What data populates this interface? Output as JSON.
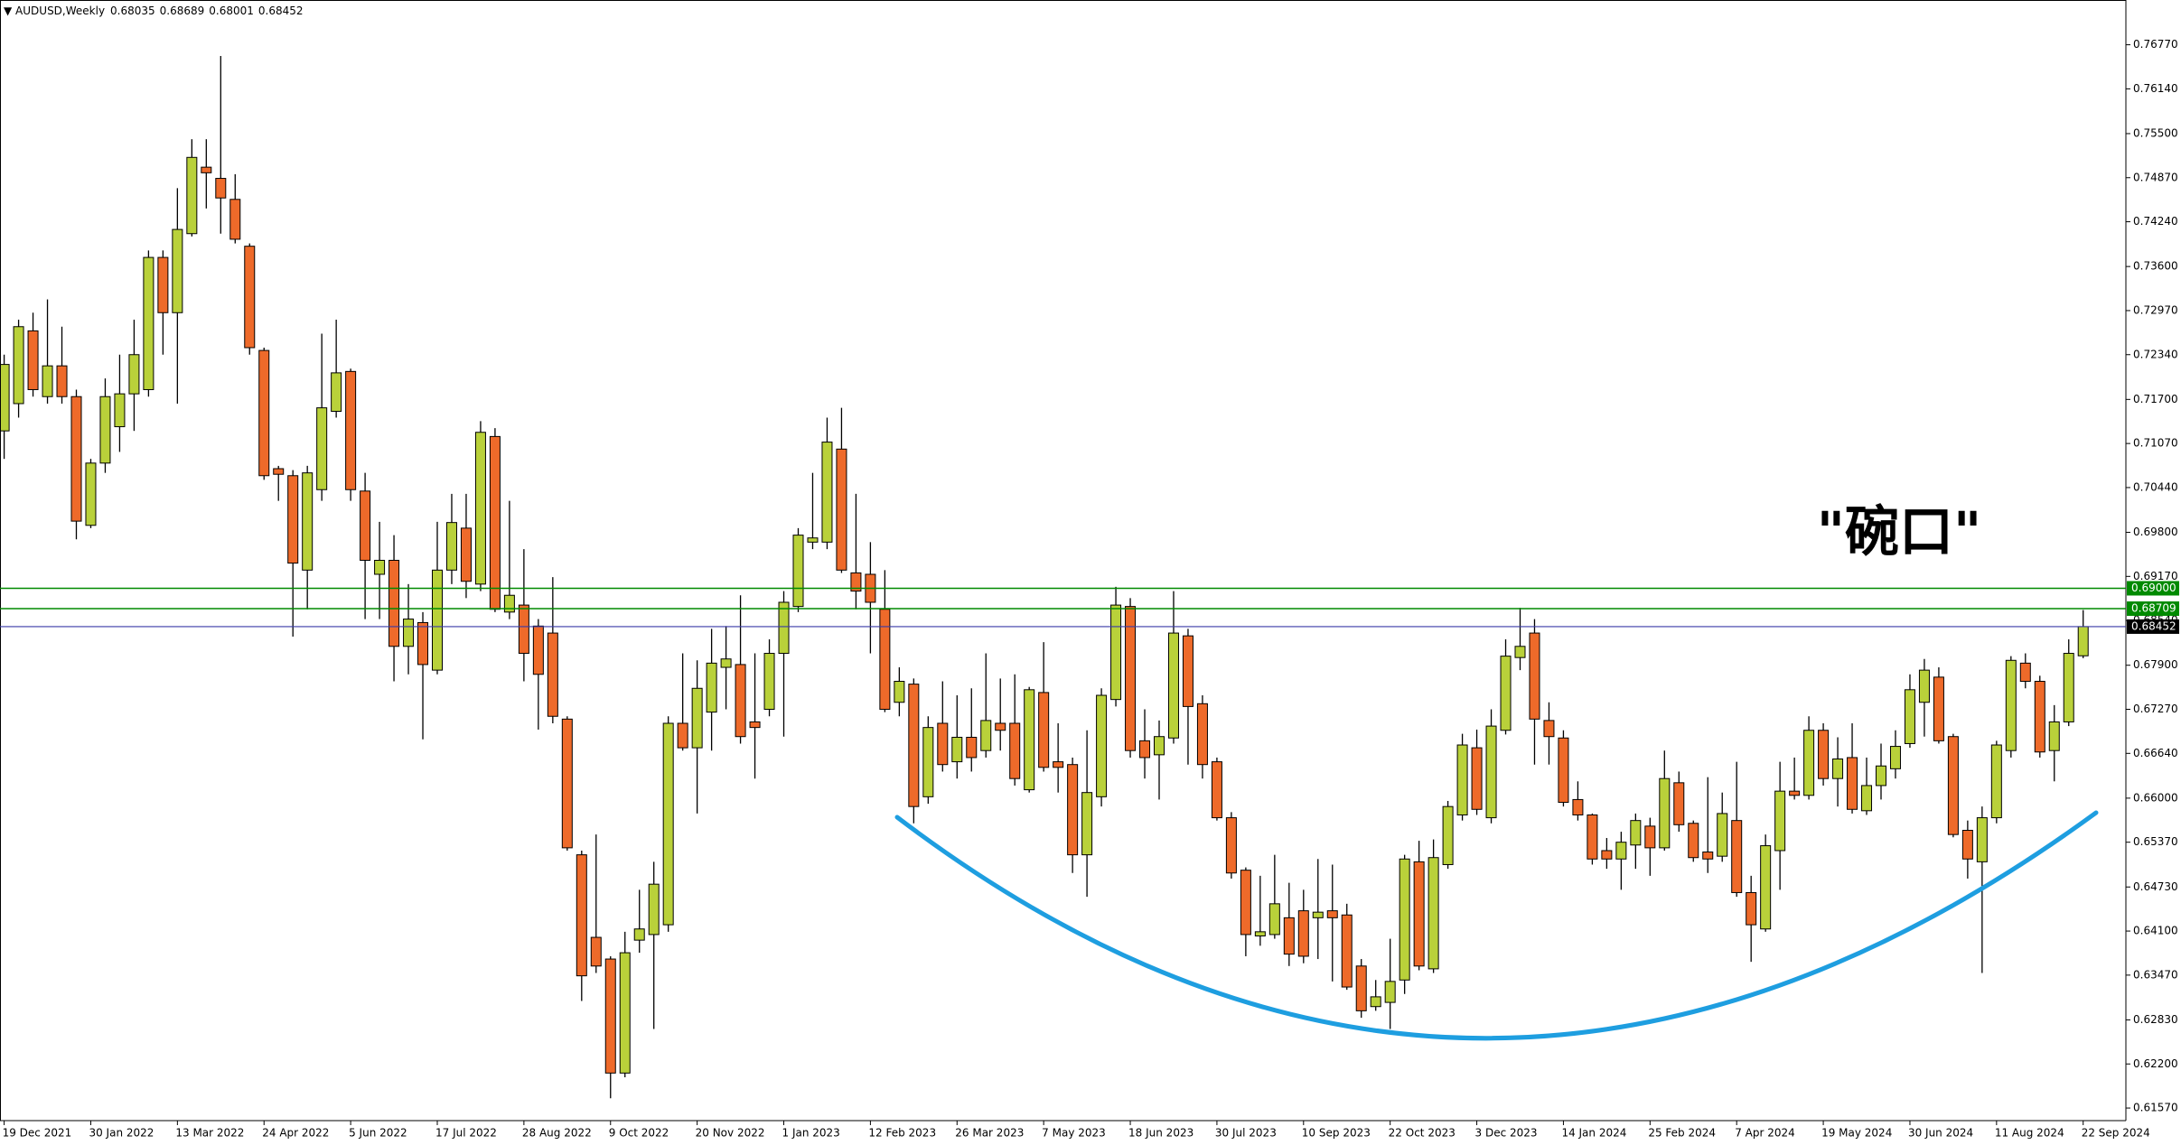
{
  "chart_data": {
    "type": "candlestick",
    "title": "AUDUSD,Weekly",
    "annotation": "\"碗口\"",
    "up_color": "#b9d13a",
    "down_color": "#ee6a2a",
    "categories": [
      "19 Dec 2021",
      null,
      null,
      null,
      null,
      null,
      "30 Jan 2022",
      null,
      null,
      null,
      null,
      null,
      "13 Mar 2022",
      null,
      null,
      null,
      null,
      null,
      "24 Apr 2022",
      null,
      null,
      null,
      null,
      null,
      "5 Jun 2022",
      null,
      null,
      null,
      null,
      null,
      "17 Jul 2022",
      null,
      null,
      null,
      null,
      null,
      "28 Aug 2022",
      null,
      null,
      null,
      null,
      null,
      "9 Oct 2022",
      null,
      null,
      null,
      null,
      null,
      "20 Nov 2022",
      null,
      null,
      null,
      null,
      null,
      "1 Jan 2023",
      null,
      null,
      null,
      null,
      null,
      "12 Feb 2023",
      null,
      null,
      null,
      null,
      null,
      "26 Mar 2023",
      null,
      null,
      null,
      null,
      null,
      "7 May 2023",
      null,
      null,
      null,
      null,
      null,
      "18 Jun 2023",
      null,
      null,
      null,
      null,
      null,
      "30 Jul 2023",
      null,
      null,
      null,
      null,
      null,
      "10 Sep 2023",
      null,
      null,
      null,
      null,
      null,
      "22 Oct 2023",
      null,
      null,
      null,
      null,
      null,
      "3 Dec 2023",
      null,
      null,
      null,
      null,
      null,
      "14 Jan 2024",
      null,
      null,
      null,
      null,
      null,
      "25 Feb 2024",
      null,
      null,
      null,
      null,
      null,
      "7 Apr 2024",
      null,
      null,
      null,
      null,
      null,
      "19 May 2024",
      null,
      null,
      null,
      null,
      null,
      "30 Jun 2024",
      null,
      null,
      null,
      null,
      null,
      "11 Aug 2024",
      null,
      null,
      null,
      null,
      null,
      "22 Sep 2024"
    ],
    "open": [
      0.7125,
      0.7164,
      0.7268,
      0.7174,
      0.7218,
      0.7174,
      0.699,
      0.7079,
      0.7131,
      0.7178,
      0.7184,
      0.7373,
      0.7294,
      0.7407,
      0.7502,
      0.7486,
      0.7456,
      0.7389,
      0.724,
      0.7071,
      0.7061,
      0.6926,
      0.7041,
      0.7153,
      0.721,
      0.7039,
      0.692,
      0.694,
      0.6817,
      0.6851,
      0.6783,
      0.6926,
      0.6986,
      0.6906,
      0.7117,
      0.6866,
      0.6876,
      0.6846,
      0.6836,
      0.6713,
      0.6519,
      0.6401,
      0.637,
      0.6207,
      0.6397,
      0.6405,
      0.6419,
      0.6707,
      0.6672,
      0.6723,
      0.6787,
      0.6791,
      0.6709,
      0.6727,
      0.6807,
      0.6874,
      0.6966,
      0.6966,
      0.7099,
      0.6922,
      0.692,
      0.687,
      0.6737,
      0.6763,
      0.6602,
      0.6707,
      0.6652,
      0.6687,
      0.6668,
      0.6707,
      0.6707,
      0.6612,
      0.6751,
      0.6652,
      0.6648,
      0.6519,
      0.6602,
      0.6741,
      0.6874,
      0.6682,
      0.6662,
      0.6686,
      0.6832,
      0.6735,
      0.6652,
      0.6572,
      0.6497,
      0.6403,
      0.6405,
      0.6429,
      0.6439,
      0.6429,
      0.6439,
      0.6433,
      0.636,
      0.6302,
      0.6308,
      0.634,
      0.6509,
      0.6356,
      0.6505,
      0.6576,
      0.6672,
      0.6572,
      0.6697,
      0.6801,
      0.6836,
      0.6711,
      0.6686,
      0.6598,
      0.6576,
      0.6525,
      0.6513,
      0.6533,
      0.656,
      0.6529,
      0.6622,
      0.6564,
      0.6523,
      0.6517,
      0.6568,
      0.6465,
      0.6413,
      0.6525,
      0.661,
      0.6604,
      0.6697,
      0.6628,
      0.6658,
      0.6582,
      0.6618,
      0.6642,
      0.6678,
      0.6737,
      0.6773,
      0.6688,
      0.6554,
      0.6509,
      0.6572,
      0.6668,
      0.6793,
      0.6767,
      0.6668,
      0.6709,
      0.68035
    ],
    "high": [
      0.7234,
      0.7284,
      0.7294,
      0.7313,
      0.7274,
      0.7184,
      0.7085,
      0.72,
      0.7234,
      0.7284,
      0.7383,
      0.7383,
      0.7472,
      0.7542,
      0.7542,
      0.7661,
      0.7492,
      0.7393,
      0.7244,
      0.7075,
      0.7069,
      0.7075,
      0.7264,
      0.7284,
      0.7214,
      0.7065,
      0.6995,
      0.6976,
      0.6906,
      0.6866,
      0.6995,
      0.7035,
      0.7035,
      0.7139,
      0.7129,
      0.7025,
      0.6956,
      0.6856,
      0.6916,
      0.6717,
      0.6525,
      0.6548,
      0.6374,
      0.6409,
      0.6469,
      0.6509,
      0.6717,
      0.6807,
      0.6797,
      0.6842,
      0.6846,
      0.689,
      0.6807,
      0.6827,
      0.6896,
      0.6986,
      0.7065,
      0.7144,
      0.7158,
      0.7035,
      0.6966,
      0.6926,
      0.6787,
      0.6771,
      0.6717,
      0.6767,
      0.6747,
      0.6757,
      0.6807,
      0.6771,
      0.6777,
      0.6759,
      0.6823,
      0.6707,
      0.6658,
      0.6697,
      0.6757,
      0.6902,
      0.6886,
      0.6727,
      0.6711,
      0.6896,
      0.6842,
      0.6747,
      0.6658,
      0.658,
      0.6501,
      0.6489,
      0.6519,
      0.6479,
      0.6469,
      0.6513,
      0.6505,
      0.6449,
      0.637,
      0.634,
      0.6399,
      0.6519,
      0.6539,
      0.6541,
      0.6596,
      0.6692,
      0.6698,
      0.6727,
      0.6827,
      0.6872,
      0.6856,
      0.6737,
      0.6697,
      0.6624,
      0.6578,
      0.6543,
      0.6552,
      0.6578,
      0.6572,
      0.6668,
      0.6638,
      0.6568,
      0.663,
      0.6608,
      0.6652,
      0.6489,
      0.6548,
      0.6652,
      0.6658,
      0.6717,
      0.6707,
      0.6687,
      0.6707,
      0.6658,
      0.6678,
      0.6697,
      0.6777,
      0.6799,
      0.6787,
      0.6692,
      0.6568,
      0.6588,
      0.6682,
      0.6803,
      0.6807,
      0.6775,
      0.6733,
      0.6827,
      0.68689
    ],
    "low": [
      0.7085,
      0.7144,
      0.7174,
      0.7164,
      0.7164,
      0.697,
      0.6986,
      0.7065,
      0.7095,
      0.7125,
      0.7174,
      0.7234,
      0.7164,
      0.7403,
      0.7443,
      0.7407,
      0.7393,
      0.7234,
      0.7055,
      0.7025,
      0.6831,
      0.687,
      0.7025,
      0.7144,
      0.7025,
      0.6856,
      0.6856,
      0.6767,
      0.6777,
      0.6684,
      0.6777,
      0.6906,
      0.6886,
      0.6896,
      0.6866,
      0.6856,
      0.6767,
      0.6698,
      0.6707,
      0.6525,
      0.631,
      0.635,
      0.6171,
      0.6201,
      0.6379,
      0.627,
      0.6409,
      0.6668,
      0.6578,
      0.6668,
      0.6727,
      0.6678,
      0.6628,
      0.6717,
      0.6688,
      0.6866,
      0.6956,
      0.6956,
      0.6922,
      0.687,
      0.6807,
      0.6723,
      0.6717,
      0.6564,
      0.6592,
      0.6638,
      0.6628,
      0.6638,
      0.6658,
      0.6668,
      0.6618,
      0.6608,
      0.6638,
      0.6608,
      0.6493,
      0.6459,
      0.6588,
      0.6731,
      0.6658,
      0.6628,
      0.6598,
      0.6678,
      0.6648,
      0.6628,
      0.6568,
      0.6485,
      0.6374,
      0.6389,
      0.6399,
      0.636,
      0.6364,
      0.637,
      0.6338,
      0.6326,
      0.6286,
      0.6296,
      0.627,
      0.632,
      0.6354,
      0.635,
      0.6499,
      0.6568,
      0.6576,
      0.6564,
      0.6691,
      0.6783,
      0.6648,
      0.6648,
      0.6588,
      0.6568,
      0.6505,
      0.6499,
      0.6469,
      0.6499,
      0.6489,
      0.6525,
      0.6552,
      0.6509,
      0.6493,
      0.6509,
      0.6459,
      0.6366,
      0.6409,
      0.6469,
      0.6598,
      0.6598,
      0.6618,
      0.6588,
      0.6578,
      0.6576,
      0.6598,
      0.6628,
      0.6672,
      0.6688,
      0.6678,
      0.6544,
      0.6485,
      0.635,
      0.6564,
      0.6658,
      0.6757,
      0.6658,
      0.6624,
      0.6703,
      0.68001
    ],
    "close": [
      0.722,
      0.7274,
      0.7184,
      0.7218,
      0.7174,
      0.6996,
      0.7079,
      0.7174,
      0.7178,
      0.7234,
      0.7373,
      0.7294,
      0.7413,
      0.7516,
      0.7494,
      0.7458,
      0.7399,
      0.7244,
      0.7061,
      0.7063,
      0.6936,
      0.7065,
      0.7158,
      0.7208,
      0.7041,
      0.694,
      0.694,
      0.6817,
      0.6856,
      0.6791,
      0.6926,
      0.6994,
      0.691,
      0.7123,
      0.687,
      0.689,
      0.6807,
      0.6777,
      0.6717,
      0.6529,
      0.6346,
      0.636,
      0.6207,
      0.6379,
      0.6413,
      0.6477,
      0.6707,
      0.6672,
      0.6757,
      0.6793,
      0.6799,
      0.6688,
      0.6701,
      0.6807,
      0.688,
      0.6976,
      0.6972,
      0.7109,
      0.6926,
      0.6896,
      0.688,
      0.6727,
      0.6767,
      0.6588,
      0.6701,
      0.6648,
      0.6687,
      0.6658,
      0.6711,
      0.6697,
      0.6628,
      0.6755,
      0.6644,
      0.6644,
      0.6519,
      0.6608,
      0.6747,
      0.6876,
      0.6668,
      0.6658,
      0.6688,
      0.6836,
      0.6731,
      0.6648,
      0.6572,
      0.6493,
      0.6405,
      0.6409,
      0.6449,
      0.6377,
      0.6374,
      0.6437,
      0.6429,
      0.633,
      0.6296,
      0.6316,
      0.6338,
      0.6513,
      0.636,
      0.6515,
      0.6588,
      0.6676,
      0.6584,
      0.6703,
      0.6803,
      0.6817,
      0.6713,
      0.6688,
      0.6594,
      0.6576,
      0.6513,
      0.6513,
      0.6537,
      0.6568,
      0.6529,
      0.6628,
      0.6562,
      0.6515,
      0.6513,
      0.6578,
      0.6465,
      0.6419,
      0.6532,
      0.661,
      0.6604,
      0.6697,
      0.6628,
      0.6656,
      0.6584,
      0.6618,
      0.6646,
      0.6674,
      0.6755,
      0.6783,
      0.6682,
      0.6548,
      0.6513,
      0.6572,
      0.6676,
      0.6797,
      0.6767,
      0.6666,
      0.6709,
      0.6807,
      0.68452
    ],
    "ylim": [
      0.6139,
      0.7741
    ],
    "yticks": [
      {
        "value": 0.7677,
        "label": "0.76770"
      },
      {
        "value": 0.7614,
        "label": "0.76140"
      },
      {
        "value": 0.755,
        "label": "0.75500"
      },
      {
        "value": 0.7487,
        "label": "0.74870"
      },
      {
        "value": 0.7424,
        "label": "0.74240"
      },
      {
        "value": 0.736,
        "label": "0.73600"
      },
      {
        "value": 0.7297,
        "label": "0.72970"
      },
      {
        "value": 0.7234,
        "label": "0.72340"
      },
      {
        "value": 0.717,
        "label": "0.71700"
      },
      {
        "value": 0.7107,
        "label": "0.71070"
      },
      {
        "value": 0.7044,
        "label": "0.70440"
      },
      {
        "value": 0.698,
        "label": "0.69800"
      },
      {
        "value": 0.6917,
        "label": "0.69170"
      },
      {
        "value": 0.6854,
        "label": "0.68540"
      },
      {
        "value": 0.679,
        "label": "0.67900"
      },
      {
        "value": 0.6727,
        "label": "0.67270"
      },
      {
        "value": 0.6664,
        "label": "0.66640"
      },
      {
        "value": 0.66,
        "label": "0.66000"
      },
      {
        "value": 0.6537,
        "label": "0.65370"
      },
      {
        "value": 0.6473,
        "label": "0.64730"
      },
      {
        "value": 0.641,
        "label": "0.64100"
      },
      {
        "value": 0.6347,
        "label": "0.63470"
      },
      {
        "value": 0.6283,
        "label": "0.62830"
      },
      {
        "value": 0.622,
        "label": "0.62200"
      },
      {
        "value": 0.6157,
        "label": "0.61570"
      }
    ],
    "hlines": [
      {
        "value": 0.69,
        "label": "0.69000",
        "color": "#008a00"
      },
      {
        "value": 0.68709,
        "color": "#008a00"
      }
    ],
    "bid_color": "#3a3aa8"
  }
}
